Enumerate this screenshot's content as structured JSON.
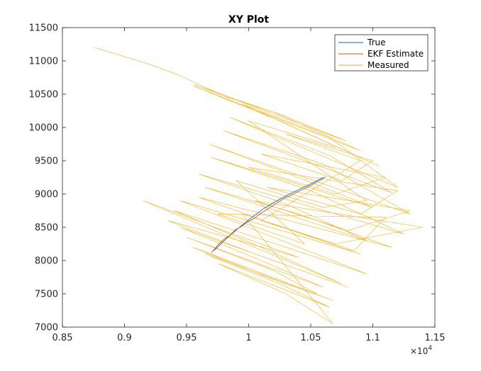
{
  "chart_data": {
    "type": "line",
    "title": "XY Plot",
    "xlabel": "",
    "ylabel": "",
    "xlim": [
      8500,
      11500
    ],
    "ylim": [
      7000,
      11500
    ],
    "x_ticks": [
      8500,
      9000,
      9500,
      10000,
      10500,
      11000,
      11500
    ],
    "x_tick_labels": [
      "0.85",
      "0.9",
      "0.95",
      "1",
      "1.05",
      "1.1",
      "1.15"
    ],
    "x_exponent_label": "×10",
    "x_exponent_power": "4",
    "y_ticks": [
      7000,
      7500,
      8000,
      8500,
      9000,
      9500,
      10000,
      10500,
      11000,
      11500
    ],
    "y_tick_labels": [
      "7000",
      "7500",
      "8000",
      "8500",
      "9000",
      "9500",
      "10000",
      "10500",
      "11000",
      "11500"
    ],
    "grid": false,
    "legend_position": "top-right",
    "series": [
      {
        "name": "True",
        "color": "#0072bd",
        "x": [
          9720,
          9820,
          9920,
          10020,
          10120,
          10220,
          10320,
          10420,
          10520,
          10600
        ],
        "y": [
          8150,
          8330,
          8490,
          8640,
          8780,
          8890,
          8990,
          9080,
          9170,
          9250
        ]
      },
      {
        "name": "EKF Estimate",
        "color": "#d95319",
        "x": [
          9700,
          9760,
          9800,
          9850,
          9890,
          9940,
          9990,
          10040,
          10090,
          10140,
          10190,
          10240,
          10290,
          10340,
          10390,
          10440,
          10490,
          10540,
          10590,
          10620
        ],
        "y": [
          8120,
          8250,
          8320,
          8380,
          8460,
          8510,
          8580,
          8630,
          8700,
          8760,
          8820,
          8880,
          8940,
          8980,
          9030,
          9070,
          9120,
          9170,
          9220,
          9260
        ]
      },
      {
        "name": "Measured",
        "color": "#edb120",
        "points": [
          [
            8760,
            11200
          ],
          [
            9200,
            10950
          ],
          [
            9420,
            10800
          ],
          [
            9830,
            10450
          ],
          [
            10250,
            10200
          ],
          [
            10780,
            9800
          ],
          [
            9550,
            10650
          ],
          [
            10200,
            10230
          ],
          [
            10900,
            9650
          ],
          [
            9560,
            10620
          ],
          [
            10250,
            10100
          ],
          [
            11050,
            9420
          ],
          [
            9950,
            10350
          ],
          [
            10650,
            9850
          ],
          [
            11200,
            9100
          ],
          [
            9850,
            10150
          ],
          [
            10650,
            9580
          ],
          [
            11150,
            9020
          ],
          [
            9800,
            9950
          ],
          [
            10600,
            9450
          ],
          [
            11300,
            8700
          ],
          [
            9680,
            9750
          ],
          [
            10400,
            9250
          ],
          [
            11000,
            8800
          ],
          [
            9700,
            9550
          ],
          [
            10500,
            9050
          ],
          [
            11250,
            8400
          ],
          [
            9600,
            9300
          ],
          [
            10300,
            8850
          ],
          [
            10950,
            8300
          ],
          [
            9650,
            9100
          ],
          [
            10400,
            8700
          ],
          [
            11150,
            8200
          ],
          [
            9600,
            8950
          ],
          [
            10300,
            8480
          ],
          [
            10900,
            8100
          ],
          [
            9450,
            8900
          ],
          [
            10200,
            8350
          ],
          [
            10950,
            7800
          ],
          [
            9400,
            8750
          ],
          [
            10100,
            8200
          ],
          [
            10750,
            7650
          ],
          [
            9150,
            8900
          ],
          [
            9800,
            8450
          ],
          [
            10400,
            8050
          ],
          [
            9350,
            8600
          ],
          [
            10050,
            8100
          ],
          [
            10800,
            7600
          ],
          [
            9450,
            8500
          ],
          [
            10100,
            8000
          ],
          [
            10600,
            7600
          ],
          [
            9500,
            8350
          ],
          [
            10200,
            7850
          ],
          [
            10550,
            7500
          ],
          [
            9550,
            8200
          ],
          [
            10150,
            7750
          ],
          [
            10680,
            7400
          ],
          [
            9650,
            8100
          ],
          [
            10250,
            7650
          ],
          [
            10650,
            7300
          ],
          [
            9760,
            7950
          ],
          [
            10300,
            7500
          ],
          [
            10680,
            7050
          ],
          [
            9950,
            8700
          ],
          [
            10700,
            8250
          ],
          [
            11400,
            8500
          ],
          [
            10050,
            8900
          ],
          [
            10800,
            8450
          ],
          [
            11300,
            8750
          ],
          [
            10150,
            9100
          ],
          [
            10900,
            8700
          ],
          [
            11200,
            9050
          ],
          [
            10000,
            9400
          ],
          [
            10700,
            9000
          ],
          [
            11100,
            9250
          ],
          [
            10100,
            9600
          ],
          [
            10750,
            9200
          ],
          [
            11000,
            9500
          ],
          [
            10300,
            9900
          ],
          [
            10900,
            9500
          ],
          [
            10100,
            8600
          ],
          [
            10850,
            8150
          ],
          [
            11100,
            8650
          ],
          [
            9750,
            8700
          ],
          [
            10450,
            8250
          ],
          [
            9900,
            9200
          ],
          [
            10600,
            8800
          ],
          [
            10950,
            8900
          ],
          [
            10000,
            10100
          ],
          [
            10700,
            9700
          ]
        ]
      }
    ]
  }
}
